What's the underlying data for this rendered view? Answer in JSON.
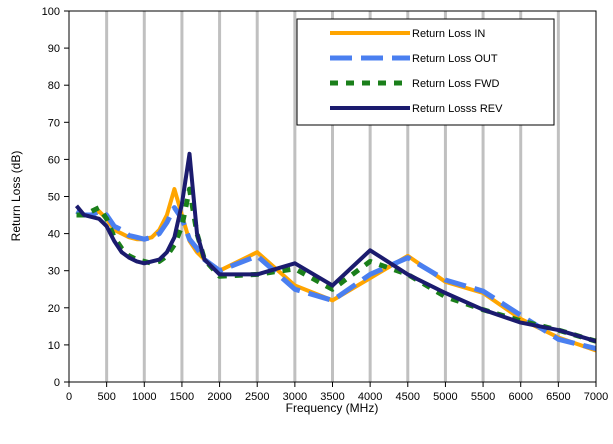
{
  "chart_data": {
    "type": "line",
    "title": "",
    "xlabel": "Frequency (MHz)",
    "ylabel": "Return Loss (dB)",
    "xlim": [
      0,
      7000
    ],
    "ylim": [
      0,
      100
    ],
    "x_ticks": [
      0,
      500,
      1000,
      1500,
      2000,
      2500,
      3000,
      3500,
      4000,
      4500,
      5000,
      5500,
      6000,
      6500,
      7000
    ],
    "y_ticks": [
      0,
      10,
      20,
      30,
      40,
      50,
      60,
      70,
      80,
      90,
      100
    ],
    "grid": "vertical",
    "legend_position": "top-right",
    "series": [
      {
        "name": "Return Loss IN",
        "color": "#ffa500",
        "dash": "solid",
        "x": [
          100,
          200,
          300,
          400,
          500,
          600,
          700,
          800,
          900,
          1000,
          1100,
          1200,
          1300,
          1400,
          1500,
          1600,
          1700,
          1800,
          2000,
          2500,
          3000,
          3500,
          4000,
          4500,
          5000,
          5500,
          6000,
          6500,
          7000
        ],
        "y": [
          46,
          45,
          45,
          46,
          44,
          41,
          40,
          39,
          38.5,
          38.5,
          39,
          41,
          45,
          52,
          45,
          38,
          35,
          33,
          30,
          35,
          26,
          22,
          28,
          34,
          27,
          24,
          17,
          12,
          8.5
        ]
      },
      {
        "name": "Return Loss OUT",
        "color": "#4a7ff0",
        "dash": "dashed",
        "x": [
          100,
          200,
          300,
          400,
          500,
          600,
          700,
          800,
          900,
          1000,
          1100,
          1200,
          1300,
          1400,
          1500,
          1600,
          1700,
          1800,
          2000,
          2500,
          3000,
          3500,
          4000,
          4500,
          5000,
          5500,
          6000,
          6500,
          7000
        ],
        "y": [
          46,
          45,
          45,
          46,
          45,
          42,
          41,
          39.5,
          39,
          38.5,
          39,
          40,
          43,
          47,
          44,
          38.5,
          36,
          33,
          30,
          34,
          25,
          22,
          29,
          33.5,
          27.5,
          24.5,
          18,
          11.5,
          9
        ]
      },
      {
        "name": "Return Loss FWD",
        "color": "#1a7f1a",
        "dash": "dotted",
        "x": [
          100,
          200,
          300,
          400,
          500,
          600,
          700,
          800,
          900,
          1000,
          1100,
          1200,
          1300,
          1400,
          1500,
          1600,
          1700,
          1800,
          2000,
          2500,
          3000,
          3500,
          4000,
          4500,
          5000,
          5500,
          6000,
          6500,
          7000
        ],
        "y": [
          45,
          45,
          46,
          47,
          44,
          39,
          36,
          34,
          33,
          32.5,
          32,
          32.5,
          34,
          37,
          42,
          52,
          40,
          33,
          28.5,
          29,
          30.5,
          25,
          32.5,
          29,
          23,
          19.5,
          16.5,
          14,
          11
        ]
      },
      {
        "name": "Return Losss REV",
        "color": "#1b1b6e",
        "dash": "solid",
        "x": [
          100,
          200,
          300,
          400,
          500,
          600,
          700,
          800,
          900,
          1000,
          1100,
          1200,
          1300,
          1400,
          1500,
          1600,
          1700,
          1800,
          2000,
          2500,
          3000,
          3500,
          4000,
          4500,
          5000,
          5500,
          6000,
          6500,
          7000
        ],
        "y": [
          47.5,
          45,
          44.5,
          44,
          42,
          38,
          35,
          33.5,
          32.5,
          32,
          32.5,
          33,
          35,
          39,
          48,
          61.5,
          40,
          33,
          29,
          29,
          32,
          26,
          35.5,
          29,
          24,
          19.5,
          16,
          14,
          11
        ]
      }
    ]
  }
}
